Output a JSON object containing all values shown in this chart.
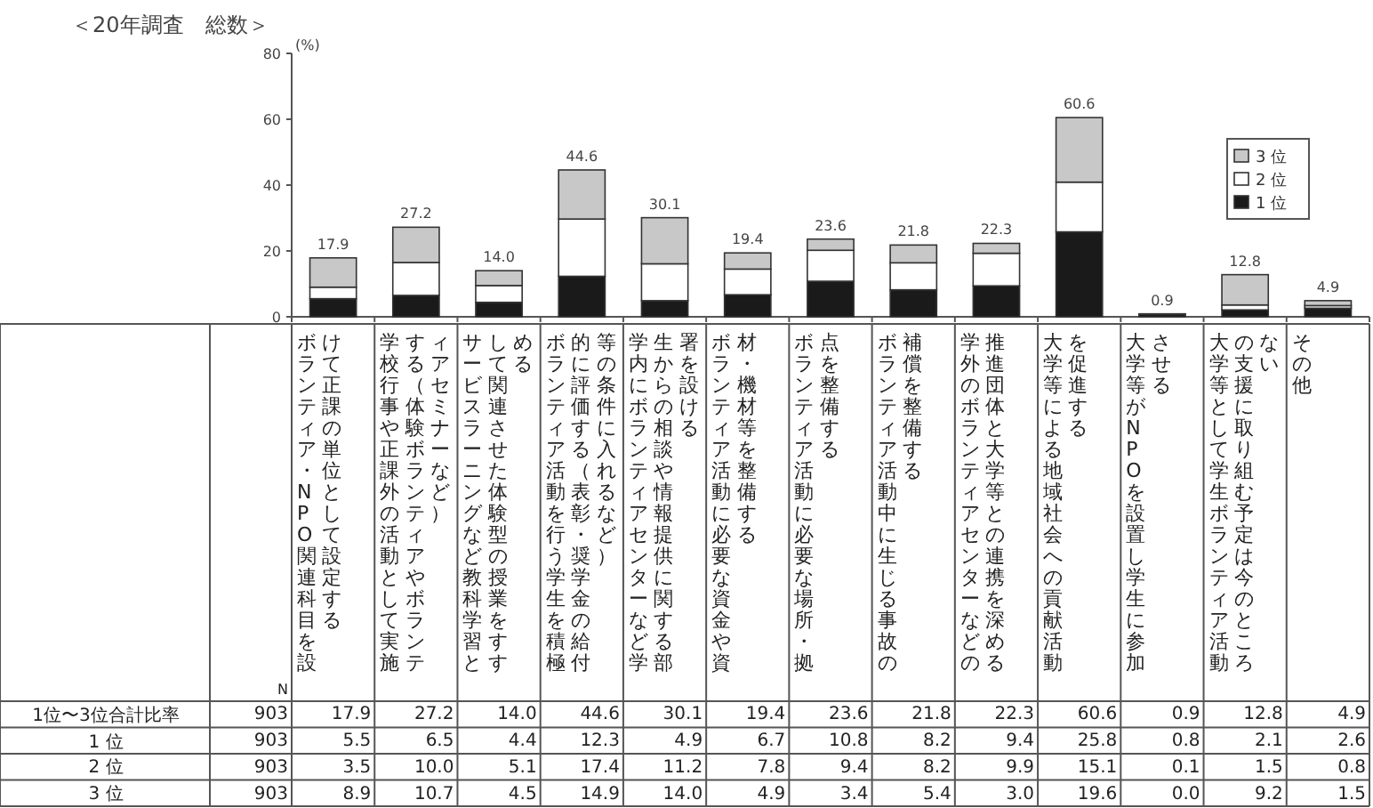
{
  "chart_data": {
    "type": "bar",
    "stacked": true,
    "title": "＜20年調査　総数＞",
    "ylabel": "(%)",
    "categories": [
      "ボランティア・NPO関連科目を設けて正課の単位として設定する",
      "学校行事や正課外の活動として実施する（体験ボランティアやボランティアセミナーなど）",
      "サービスラーニングなど教科学習として関連させた体験型の授業をすすめる",
      "ボランティア活動を行う学生を積極的に評価する（表彰・奨学金の給付等の条件に入れるなど）",
      "学内にボランティアセンターなど学生からの相談や情報提供に関する部署を設ける",
      "ボランティア活動に必要な資金や資材・機材等を整備する",
      "ボランティア活動に必要な場所・拠点を整備する",
      "ボランティア活動中に生じる事故の補償を整備する",
      "学外のボランティアセンターなどの推進団体と大学等との連携を深める",
      "大学等による地域社会への貢献活動を促進する",
      "大学等がNPOを設置し学生に参加させる",
      "大学等として学生ボランティア活動の支援に取り組む予定は今のところない",
      "その他"
    ],
    "series": [
      {
        "name": "1 位",
        "color": "#1a1a1a",
        "values": [
          5.5,
          6.5,
          4.4,
          12.3,
          4.9,
          6.7,
          10.8,
          8.2,
          9.4,
          25.8,
          0.8,
          2.1,
          2.6
        ],
        "value_labels": [
          "5.5",
          "6.5",
          "4.4",
          "12.3",
          "4.9",
          "6.7",
          "10.8",
          "8.2",
          "9.4",
          "25.8",
          "0.8",
          "2.1",
          "2.6"
        ]
      },
      {
        "name": "2 位",
        "color": "#ffffff",
        "values": [
          3.5,
          10.0,
          5.1,
          17.4,
          11.2,
          7.8,
          9.4,
          8.2,
          9.9,
          15.1,
          0.1,
          1.5,
          0.8
        ],
        "value_labels": [
          "3.5",
          "10.0",
          "5.1",
          "17.4",
          "11.2",
          "7.8",
          "9.4",
          "8.2",
          "9.9",
          "15.1",
          "0.1",
          "1.5",
          "0.8"
        ]
      },
      {
        "name": "3 位",
        "color": "#c8c8c8",
        "values": [
          8.9,
          10.7,
          4.5,
          14.9,
          14.0,
          4.9,
          3.4,
          5.4,
          3.0,
          19.6,
          0.0,
          9.2,
          1.5
        ],
        "value_labels": [
          "8.9",
          "10.7",
          "4.5",
          "14.9",
          "14.0",
          "4.9",
          "3.4",
          "5.4",
          "3.0",
          "19.6",
          "0.0",
          "9.2",
          "1.5"
        ]
      }
    ],
    "totals": [
      "17.9",
      "27.2",
      "14.0",
      "44.6",
      "30.1",
      "19.4",
      "23.6",
      "21.8",
      "22.3",
      "60.6",
      "0.9",
      "12.8",
      "4.9"
    ],
    "ylim": [
      0,
      80
    ],
    "yticks": [
      0,
      20,
      40,
      60,
      80
    ],
    "legend": "top right",
    "grid": false,
    "annotations": [
      "1位〜3位合計比率",
      "N",
      "903"
    ]
  }
}
